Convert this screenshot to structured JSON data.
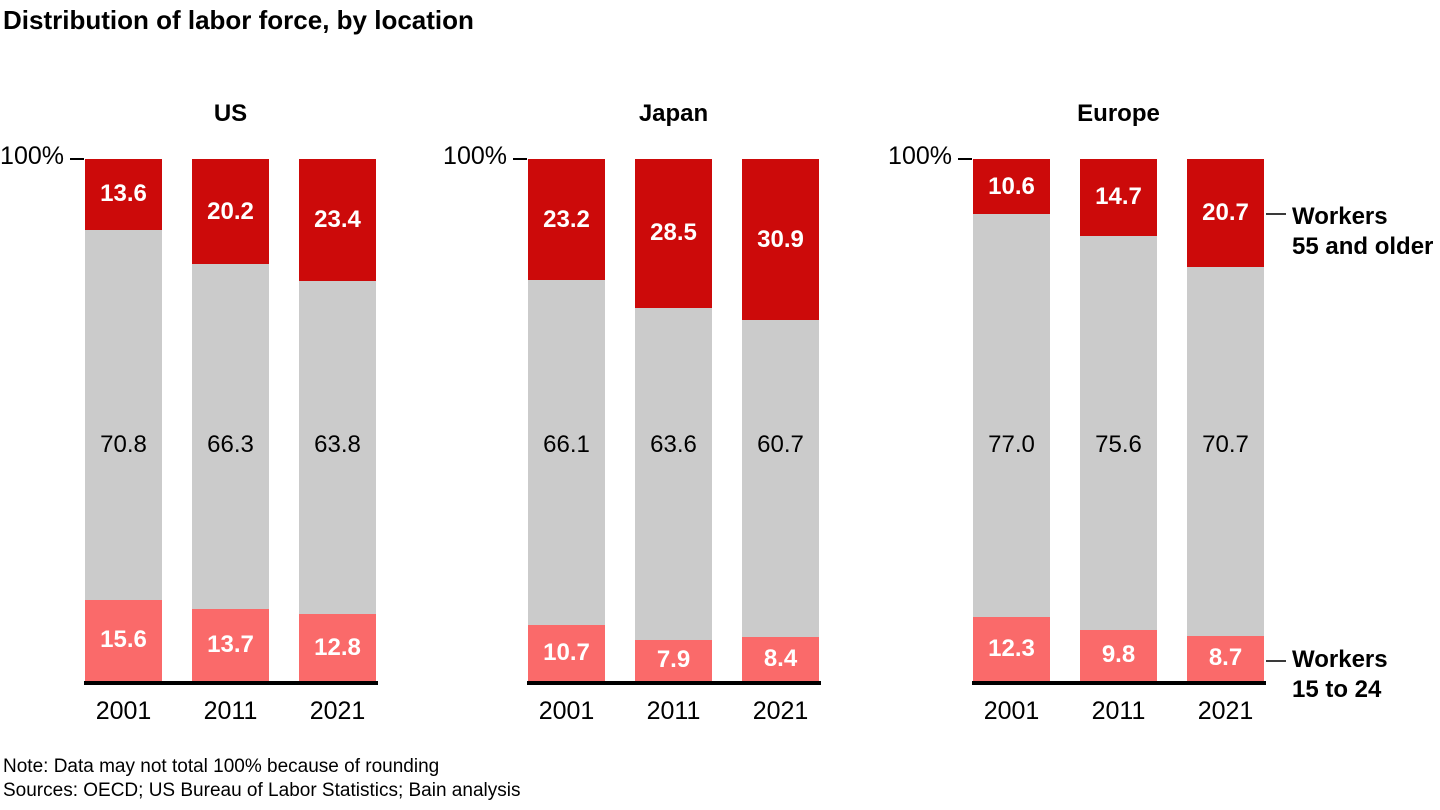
{
  "title": "Distribution of labor force, by location",
  "footer": {
    "note": "Note: Data may not total 100% because of rounding",
    "sources": "Sources: OECD; US Bureau of Labor Statistics; Bain analysis"
  },
  "legend": {
    "older_lines": [
      "Workers",
      "55 and older"
    ],
    "younger_lines": [
      "Workers",
      "15 to 24"
    ]
  },
  "colors": {
    "older": "#cc0a0a",
    "middle": "#cbcbcb",
    "younger": "#fa6a6a",
    "label_on_color": "#ffffff",
    "label_on_gray": "#000000"
  },
  "chart_data": {
    "type": "bar",
    "stacked": true,
    "unit": "%",
    "ylim": [
      0,
      100
    ],
    "y_axis_tick_label": "100%",
    "grid": false,
    "legend_position": "right",
    "segment_order_top_to_bottom": [
      "Workers 55 and older",
      "",
      "Workers 15 to 24"
    ],
    "groups": [
      {
        "label": "US",
        "categories": [
          "2001",
          "2011",
          "2021"
        ],
        "series": [
          {
            "name": "Workers 55 and older",
            "values": [
              13.6,
              20.2,
              23.4
            ]
          },
          {
            "name": "",
            "values": [
              70.8,
              66.3,
              63.8
            ]
          },
          {
            "name": "Workers 15 to 24",
            "values": [
              15.6,
              13.7,
              12.8
            ]
          }
        ]
      },
      {
        "label": "Japan",
        "categories": [
          "2001",
          "2011",
          "2021"
        ],
        "series": [
          {
            "name": "Workers 55 and older",
            "values": [
              23.2,
              28.5,
              30.9
            ]
          },
          {
            "name": "",
            "values": [
              66.1,
              63.6,
              60.7
            ]
          },
          {
            "name": "Workers 15 to 24",
            "values": [
              10.7,
              7.9,
              8.4
            ]
          }
        ]
      },
      {
        "label": "Europe",
        "categories": [
          "2001",
          "2011",
          "2021"
        ],
        "series": [
          {
            "name": "Workers 55 and older",
            "values": [
              10.6,
              14.7,
              20.7
            ]
          },
          {
            "name": "",
            "values": [
              77.0,
              75.6,
              70.7
            ]
          },
          {
            "name": "Workers 15 to 24",
            "values": [
              12.3,
              9.8,
              8.7
            ]
          }
        ]
      }
    ]
  }
}
